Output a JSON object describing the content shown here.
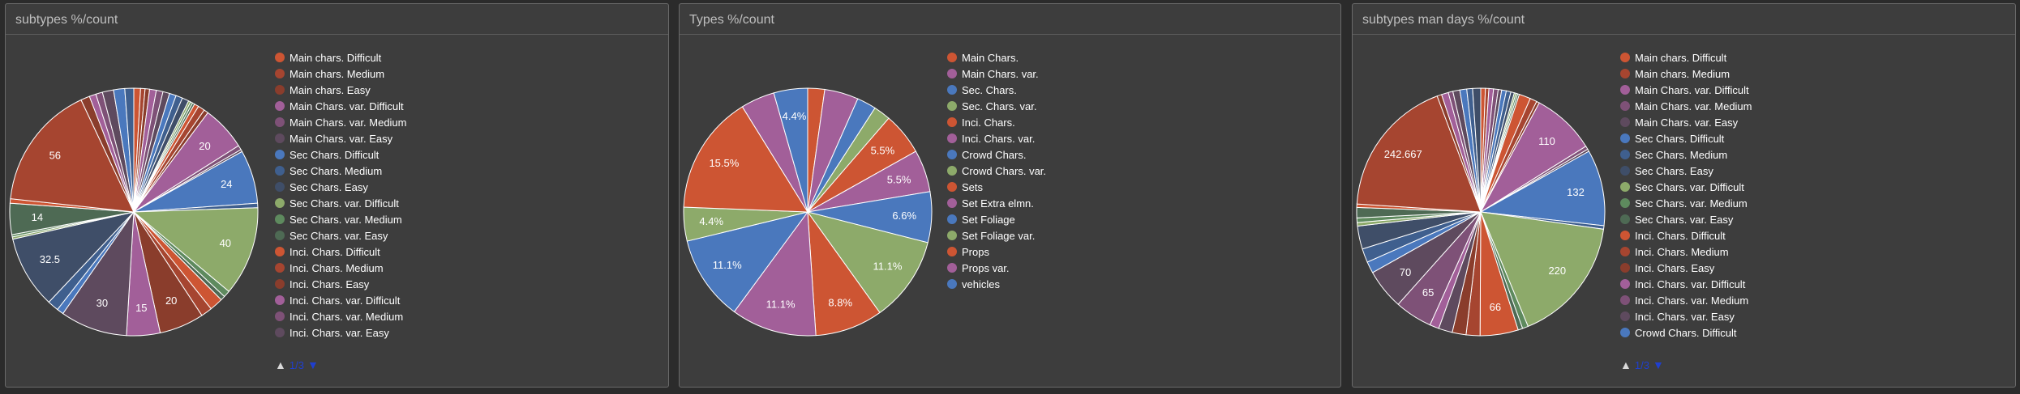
{
  "chart_data": [
    {
      "type": "pie",
      "title": "subtypes %/count",
      "legend_position": "right",
      "legend_page": "1/3",
      "slices": [
        {
          "name": "Main chars. Difficult",
          "value": 3,
          "color": "#cd5533"
        },
        {
          "name": "Main chars. Medium",
          "value": 2,
          "color": "#a64530"
        },
        {
          "name": "Main chars. Easy",
          "value": 2,
          "color": "#8a3d2c"
        },
        {
          "name": "Main Chars. var. Difficult",
          "value": 3,
          "color": "#a25f99"
        },
        {
          "name": "Main Chars. var. Medium",
          "value": 3,
          "color": "#7e5177"
        },
        {
          "name": "Main Chars. var. Easy",
          "value": 3,
          "color": "#5e4a5e"
        },
        {
          "name": "Sec Chars. Difficult",
          "value": 3,
          "color": "#4a78bd"
        },
        {
          "name": "Sec Chars. Medium",
          "value": 3,
          "color": "#3f5f8e"
        },
        {
          "name": "Sec Chars. Easy",
          "value": 3,
          "color": "#3f4e68"
        },
        {
          "name": "Sec Chars. var. Difficult",
          "value": 1,
          "color": "#8daa6a"
        },
        {
          "name": "Sec Chars. var. Medium",
          "value": 1,
          "color": "#5e8a5e"
        },
        {
          "name": "Sec Chars. var. Easy",
          "value": 1,
          "color": "#4e6a54"
        },
        {
          "name": "Inci. Chars. Difficult",
          "value": 2,
          "color": "#cd5533"
        },
        {
          "name": "Inci. Chars. Medium",
          "value": 3,
          "color": "#a64530"
        },
        {
          "name": "Inci. Chars. Easy",
          "value": 2,
          "color": "#8a3d2c"
        },
        {
          "name": "Inci. Chars. var. Difficult",
          "value": 20,
          "color": "#a25f99"
        },
        {
          "name": "Inci. Chars. var. Medium",
          "value": 2,
          "color": "#7e5177"
        },
        {
          "name": "Inci. Chars. var. Easy",
          "value": 1,
          "color": "#5e4a5e"
        },
        {
          "name": "",
          "value": 24,
          "color": "#4a78bd"
        },
        {
          "name": "",
          "value": 2,
          "color": "#3f5f8e"
        },
        {
          "name": "",
          "value": 40,
          "color": "#8daa6a"
        },
        {
          "name": "",
          "value": 3,
          "color": "#5e8a5e"
        },
        {
          "name": "",
          "value": 2,
          "color": "#4e6a54"
        },
        {
          "name": "",
          "value": 6,
          "color": "#cd5533"
        },
        {
          "name": "",
          "value": 5,
          "color": "#a64530"
        },
        {
          "name": "",
          "value": 20,
          "color": "#8a3d2c"
        },
        {
          "name": "",
          "value": 15,
          "color": "#a25f99"
        },
        {
          "name": "",
          "value": 30,
          "color": "#5e4a5e"
        },
        {
          "name": "",
          "value": 3,
          "color": "#4a78bd"
        },
        {
          "name": "",
          "value": 5,
          "color": "#3f5f8e"
        },
        {
          "name": "",
          "value": 32.5,
          "color": "#3f4e68"
        },
        {
          "name": "",
          "value": 1,
          "color": "#8daa6a"
        },
        {
          "name": "",
          "value": 1,
          "color": "#5e8a5e"
        },
        {
          "name": "",
          "value": 14,
          "color": "#4e6a54"
        },
        {
          "name": "",
          "value": 2,
          "color": "#cd5533"
        },
        {
          "name": "",
          "value": 56,
          "color": "#a64530"
        },
        {
          "name": "",
          "value": 4,
          "color": "#8a3d2c"
        },
        {
          "name": "",
          "value": 3,
          "color": "#a25f99"
        },
        {
          "name": "",
          "value": 3,
          "color": "#7e5177"
        },
        {
          "name": "",
          "value": 5,
          "color": "#5e4a5e"
        },
        {
          "name": "",
          "value": 5,
          "color": "#4a78bd"
        },
        {
          "name": "",
          "value": 4,
          "color": "#3f5f8e"
        }
      ],
      "labels": [
        {
          "slice": 15,
          "text": "20"
        },
        {
          "slice": 18,
          "text": "24"
        },
        {
          "slice": 20,
          "text": "40"
        },
        {
          "slice": 25,
          "text": "20"
        },
        {
          "slice": 26,
          "text": "15"
        },
        {
          "slice": 27,
          "text": "30"
        },
        {
          "slice": 30,
          "text": "32.5"
        },
        {
          "slice": 33,
          "text": "14"
        },
        {
          "slice": 35,
          "text": "56"
        }
      ]
    },
    {
      "type": "pie",
      "title": "Types %/count",
      "legend_position": "right",
      "slices": [
        {
          "name": "Main Chars.",
          "value": 2.2,
          "color": "#cd5533"
        },
        {
          "name": "Main Chars. var.",
          "value": 4.4,
          "color": "#a25f99"
        },
        {
          "name": "Sec. Chars.",
          "value": 2.5,
          "color": "#4a78bd"
        },
        {
          "name": "Sec. Chars. var.",
          "value": 2.2,
          "color": "#8daa6a"
        },
        {
          "name": "Inci. Chars.",
          "value": 5.5,
          "color": "#cd5533"
        },
        {
          "name": "Inci. Chars. var.",
          "value": 5.5,
          "color": "#a25f99"
        },
        {
          "name": "Crowd Chars.",
          "value": 6.6,
          "color": "#4a78bd"
        },
        {
          "name": "Crowd Chars. var.",
          "value": 11.1,
          "color": "#8daa6a"
        },
        {
          "name": "Sets",
          "value": 8.8,
          "color": "#cd5533"
        },
        {
          "name": "Set Extra elmn.",
          "value": 11.1,
          "color": "#a25f99"
        },
        {
          "name": "Set Foliage",
          "value": 11.1,
          "color": "#4a78bd"
        },
        {
          "name": "Set Foliage var.",
          "value": 4.4,
          "color": "#8daa6a"
        },
        {
          "name": "Props",
          "value": 15.5,
          "color": "#cd5533"
        },
        {
          "name": "Props var.",
          "value": 4.4,
          "color": "#a25f99"
        },
        {
          "name": "vehicles",
          "value": 4.4,
          "color": "#4a78bd"
        }
      ],
      "labels": [
        {
          "slice": 4,
          "text": "5.5%"
        },
        {
          "slice": 5,
          "text": "5.5%"
        },
        {
          "slice": 6,
          "text": "6.6%"
        },
        {
          "slice": 7,
          "text": "11.1%"
        },
        {
          "slice": 8,
          "text": "8.8%"
        },
        {
          "slice": 9,
          "text": "11.1%"
        },
        {
          "slice": 10,
          "text": "11.1%"
        },
        {
          "slice": 11,
          "text": "4.4%"
        },
        {
          "slice": 12,
          "text": "15.5%"
        },
        {
          "slice": 14,
          "text": "4.4%"
        }
      ]
    },
    {
      "type": "pie",
      "title": "subtypes man days %/count",
      "legend_position": "right",
      "legend_page": "1/3",
      "slices": [
        {
          "name": "Main chars. Difficult",
          "value": 8,
          "color": "#cd5533"
        },
        {
          "name": "Main chars. Medium",
          "value": 6,
          "color": "#a64530"
        },
        {
          "name": "Main Chars. var. Difficult",
          "value": 8,
          "color": "#a25f99"
        },
        {
          "name": "Main Chars. var. Medium",
          "value": 8,
          "color": "#7e5177"
        },
        {
          "name": "Main Chars. var. Easy",
          "value": 6,
          "color": "#5e4a5e"
        },
        {
          "name": "Sec Chars. Difficult",
          "value": 8,
          "color": "#4a78bd"
        },
        {
          "name": "Sec Chars. Medium",
          "value": 8,
          "color": "#3f5f8e"
        },
        {
          "name": "Sec Chars. Easy",
          "value": 6,
          "color": "#3f4e68"
        },
        {
          "name": "Sec Chars. var. Difficult",
          "value": 3,
          "color": "#8daa6a"
        },
        {
          "name": "Sec Chars. var. Medium",
          "value": 3,
          "color": "#5e8a5e"
        },
        {
          "name": "Sec Chars. var. Easy",
          "value": 3,
          "color": "#4e6a54"
        },
        {
          "name": "Inci. Chars. Difficult",
          "value": 20,
          "color": "#cd5533"
        },
        {
          "name": "Inci. Chars. Medium",
          "value": 12,
          "color": "#a64530"
        },
        {
          "name": "Inci. Chars. Easy",
          "value": 5,
          "color": "#8a3d2c"
        },
        {
          "name": "Inci. Chars. var. Difficult",
          "value": 110,
          "color": "#a25f99"
        },
        {
          "name": "Inci. Chars. var. Medium",
          "value": 6,
          "color": "#7e5177"
        },
        {
          "name": "Inci. Chars. var. Easy",
          "value": 4,
          "color": "#5e4a5e"
        },
        {
          "name": "Crowd Chars. Difficult",
          "value": 132,
          "color": "#4a78bd"
        },
        {
          "name": "",
          "value": 6,
          "color": "#3f5f8e"
        },
        {
          "name": "",
          "value": 220,
          "color": "#8daa6a"
        },
        {
          "name": "",
          "value": 10,
          "color": "#5e8a5e"
        },
        {
          "name": "",
          "value": 8,
          "color": "#4e6a54"
        },
        {
          "name": "",
          "value": 66,
          "color": "#cd5533"
        },
        {
          "name": "",
          "value": 24,
          "color": "#a64530"
        },
        {
          "name": "",
          "value": 24,
          "color": "#8a3d2c"
        },
        {
          "name": "",
          "value": 24,
          "color": "#5e4a5e"
        },
        {
          "name": "",
          "value": 16,
          "color": "#a25f99"
        },
        {
          "name": "",
          "value": 65,
          "color": "#7e5177"
        },
        {
          "name": "",
          "value": 70,
          "color": "#5e4a5e"
        },
        {
          "name": "",
          "value": 20,
          "color": "#4a78bd"
        },
        {
          "name": "",
          "value": 24,
          "color": "#3f5f8e"
        },
        {
          "name": "",
          "value": 40,
          "color": "#3f4e68"
        },
        {
          "name": "",
          "value": 6,
          "color": "#8daa6a"
        },
        {
          "name": "",
          "value": 8,
          "color": "#5e8a5e"
        },
        {
          "name": "",
          "value": 18,
          "color": "#4e6a54"
        },
        {
          "name": "",
          "value": 6,
          "color": "#cd5533"
        },
        {
          "name": "",
          "value": 242.667,
          "color": "#a64530"
        },
        {
          "name": "",
          "value": 8,
          "color": "#8a3d2c"
        },
        {
          "name": "",
          "value": 12,
          "color": "#a25f99"
        },
        {
          "name": "",
          "value": 8,
          "color": "#7e5177"
        },
        {
          "name": "",
          "value": 12,
          "color": "#5e4a5e"
        },
        {
          "name": "",
          "value": 12,
          "color": "#4a78bd"
        },
        {
          "name": "",
          "value": 10,
          "color": "#3f5f8e"
        },
        {
          "name": "",
          "value": 14,
          "color": "#3f4e68"
        }
      ],
      "labels": [
        {
          "slice": 14,
          "text": "110"
        },
        {
          "slice": 17,
          "text": "132"
        },
        {
          "slice": 19,
          "text": "220"
        },
        {
          "slice": 22,
          "text": "66"
        },
        {
          "slice": 27,
          "text": "65"
        },
        {
          "slice": 28,
          "text": "70"
        },
        {
          "slice": 36,
          "text": "242.667"
        }
      ]
    }
  ]
}
